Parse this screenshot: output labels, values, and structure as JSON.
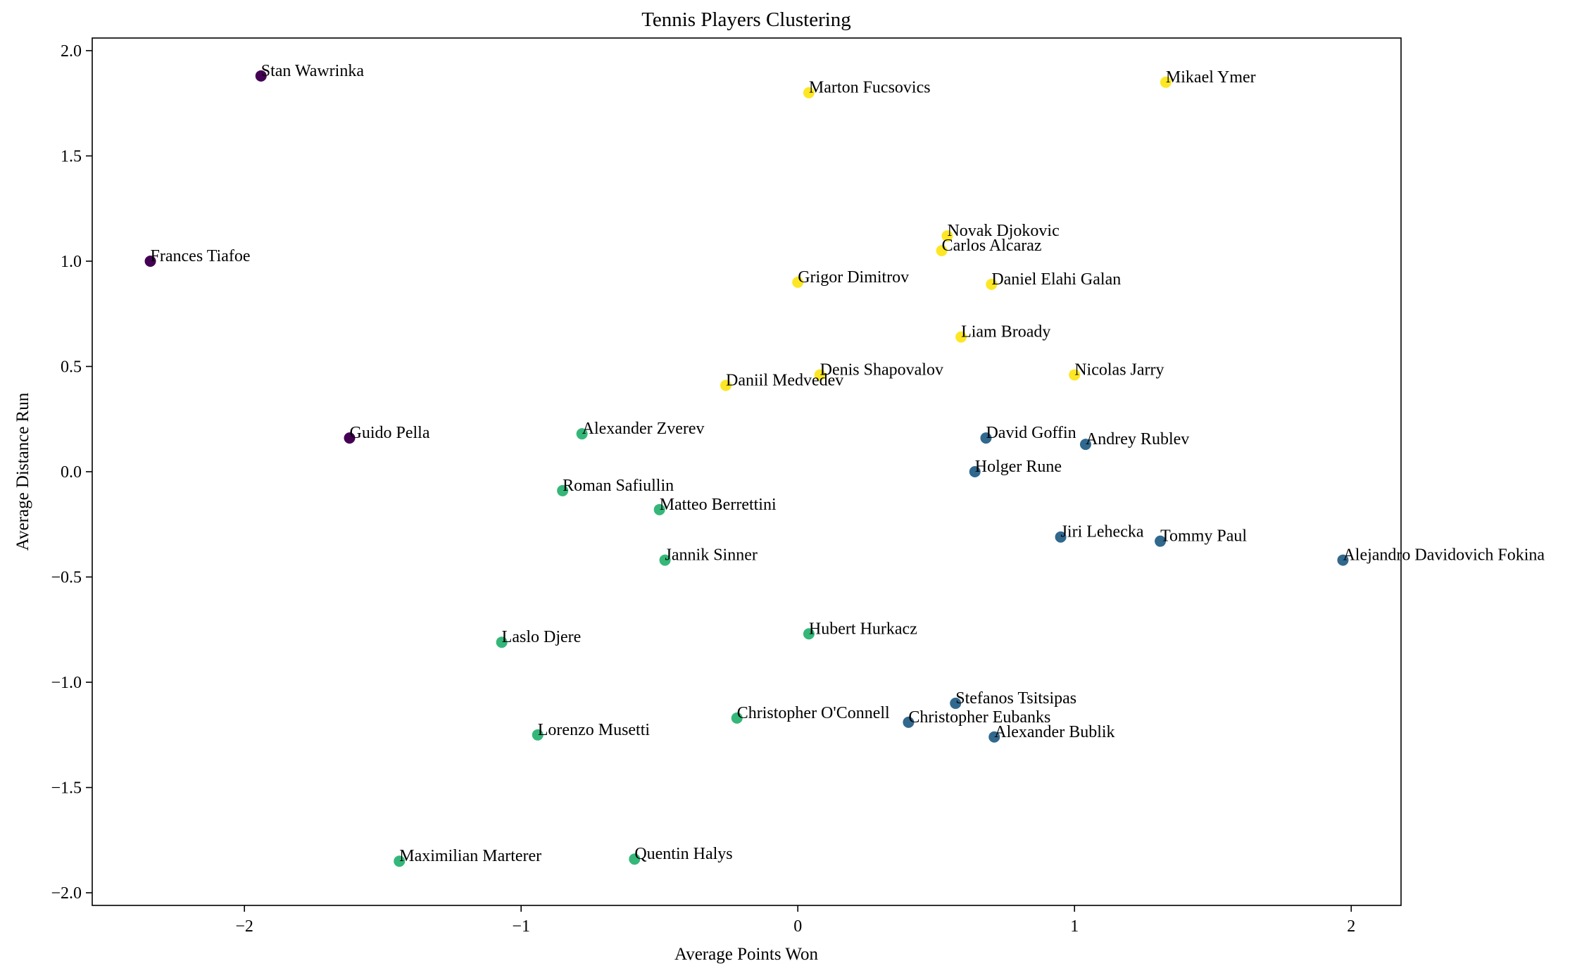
{
  "chart_data": {
    "type": "scatter",
    "title": "Tennis Players Clustering",
    "xlabel": "Average Points Won",
    "ylabel": "Average Distance Run",
    "xlim": [
      -2.55,
      2.18
    ],
    "ylim": [
      -2.06,
      2.06
    ],
    "xticks": [
      -2,
      -1,
      0,
      1,
      2
    ],
    "xtick_labels": [
      "−2",
      "−1",
      "0",
      "1",
      "2"
    ],
    "yticks": [
      -2.0,
      -1.5,
      -1.0,
      -0.5,
      0.0,
      0.5,
      1.0,
      1.5,
      2.0
    ],
    "ytick_labels": [
      "−2.0",
      "−1.5",
      "−1.0",
      "−0.5",
      "0.0",
      "0.5",
      "1.0",
      "1.5",
      "2.0"
    ],
    "grid": false,
    "cluster_colors": [
      "#440154",
      "#31688e",
      "#35b779",
      "#fde725"
    ],
    "points": [
      {
        "label": "Stan Wawrinka",
        "x": -1.94,
        "y": 1.88,
        "cluster": 0
      },
      {
        "label": "Frances Tiafoe",
        "x": -2.34,
        "y": 1.0,
        "cluster": 0
      },
      {
        "label": "Guido Pella",
        "x": -1.62,
        "y": 0.16,
        "cluster": 0
      },
      {
        "label": "Marton Fucsovics",
        "x": 0.04,
        "y": 1.8,
        "cluster": 3
      },
      {
        "label": "Mikael Ymer",
        "x": 1.33,
        "y": 1.85,
        "cluster": 3
      },
      {
        "label": "Novak Djokovic",
        "x": 0.54,
        "y": 1.12,
        "cluster": 3
      },
      {
        "label": "Carlos Alcaraz",
        "x": 0.52,
        "y": 1.05,
        "cluster": 3
      },
      {
        "label": "Grigor Dimitrov",
        "x": 0.0,
        "y": 0.9,
        "cluster": 3
      },
      {
        "label": "Daniel Elahi Galan",
        "x": 0.7,
        "y": 0.89,
        "cluster": 3
      },
      {
        "label": "Liam Broady",
        "x": 0.59,
        "y": 0.64,
        "cluster": 3
      },
      {
        "label": "Denis Shapovalov",
        "x": 0.08,
        "y": 0.46,
        "cluster": 3
      },
      {
        "label": "Nicolas Jarry",
        "x": 1.0,
        "y": 0.46,
        "cluster": 3
      },
      {
        "label": "Daniil Medvedev",
        "x": -0.26,
        "y": 0.41,
        "cluster": 3
      },
      {
        "label": "Alexander Zverev",
        "x": -0.78,
        "y": 0.18,
        "cluster": 2
      },
      {
        "label": "Roman Safiullin",
        "x": -0.85,
        "y": -0.09,
        "cluster": 2
      },
      {
        "label": "Matteo Berrettini",
        "x": -0.5,
        "y": -0.18,
        "cluster": 2
      },
      {
        "label": "Jannik Sinner",
        "x": -0.48,
        "y": -0.42,
        "cluster": 2
      },
      {
        "label": "Laslo Djere",
        "x": -1.07,
        "y": -0.81,
        "cluster": 2
      },
      {
        "label": "Hubert Hurkacz",
        "x": 0.04,
        "y": -0.77,
        "cluster": 2
      },
      {
        "label": "Christopher O'Connell",
        "x": -0.22,
        "y": -1.17,
        "cluster": 2
      },
      {
        "label": "Lorenzo Musetti",
        "x": -0.94,
        "y": -1.25,
        "cluster": 2
      },
      {
        "label": "Maximilian Marterer",
        "x": -1.44,
        "y": -1.85,
        "cluster": 2
      },
      {
        "label": "Quentin Halys",
        "x": -0.59,
        "y": -1.84,
        "cluster": 2
      },
      {
        "label": "David Goffin",
        "x": 0.68,
        "y": 0.16,
        "cluster": 1
      },
      {
        "label": "Andrey Rublev",
        "x": 1.04,
        "y": 0.13,
        "cluster": 1
      },
      {
        "label": "Holger Rune",
        "x": 0.64,
        "y": 0.0,
        "cluster": 1
      },
      {
        "label": "Jiri Lehecka",
        "x": 0.95,
        "y": -0.31,
        "cluster": 1
      },
      {
        "label": "Tommy Paul",
        "x": 1.31,
        "y": -0.33,
        "cluster": 1
      },
      {
        "label": "Alejandro Davidovich Fokina",
        "x": 1.97,
        "y": -0.42,
        "cluster": 1
      },
      {
        "label": "Stefanos Tsitsipas",
        "x": 0.57,
        "y": -1.1,
        "cluster": 1
      },
      {
        "label": "Christopher Eubanks",
        "x": 0.4,
        "y": -1.19,
        "cluster": 1
      },
      {
        "label": "Alexander Bublik",
        "x": 0.71,
        "y": -1.26,
        "cluster": 1
      }
    ]
  }
}
